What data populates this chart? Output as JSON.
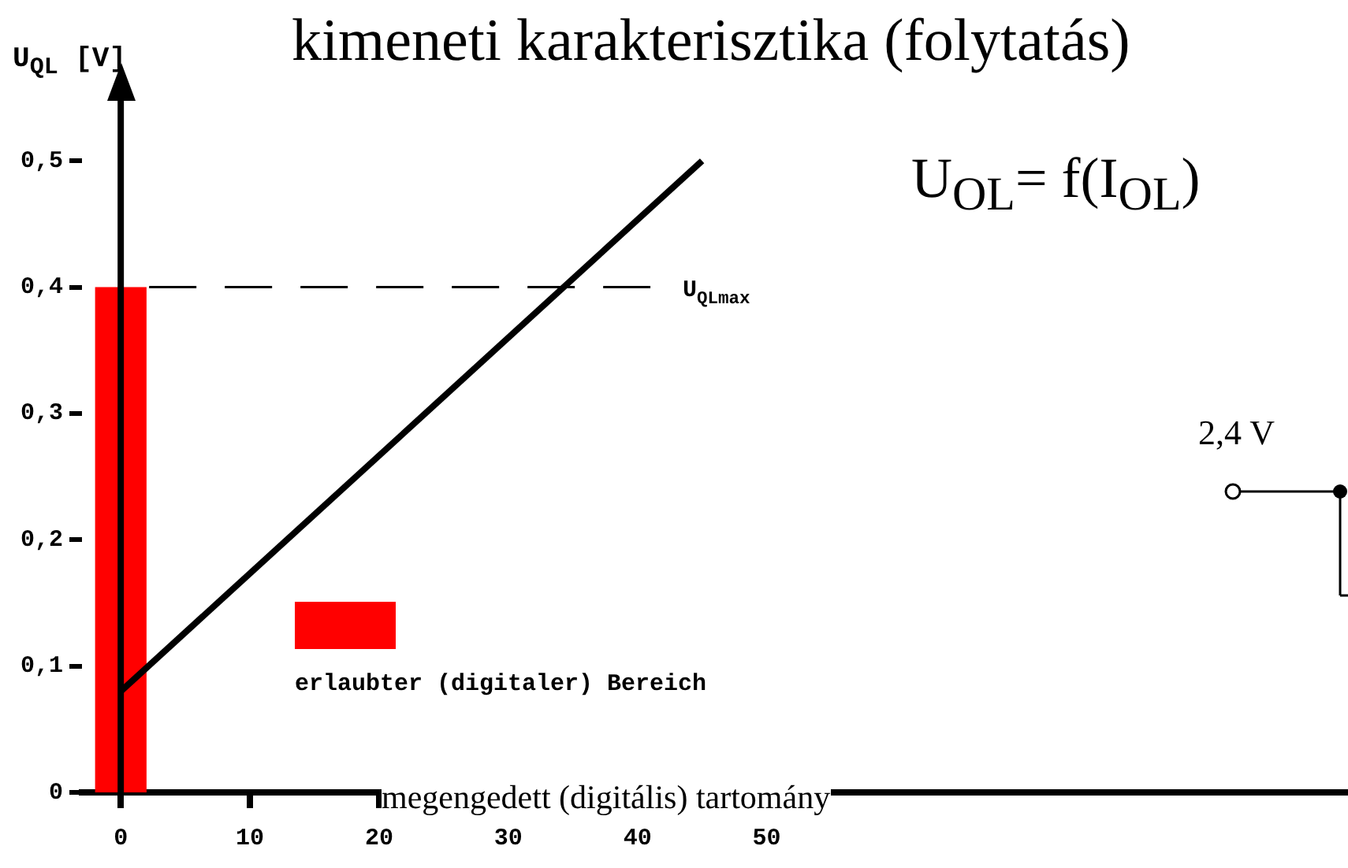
{
  "chart_data": {
    "type": "line",
    "title": "kimeneti karakterisztika (folytatás)",
    "ylabel": "U$_{QL}$ [V]",
    "annotations": [
      "U$_{OL}$= f(I$_{OL}$)",
      "megengedett (digitális) tartomány",
      "2,4 V"
    ],
    "series": [
      {
        "type": "area",
        "name": "erlaubter (digitaler) Bereich",
        "color": "#ff0000",
        "x": [
          -2,
          2
        ],
        "values": [
          0.4,
          0.4
        ]
      },
      {
        "type": "line",
        "color": "#000000",
        "x": [
          0,
          45
        ],
        "values": [
          0.08,
          0.5
        ]
      }
    ],
    "xlim": [
      -3,
      95
    ],
    "xticks": [
      0,
      10,
      20,
      30,
      40,
      50
    ],
    "ylim": [
      0,
      0.55
    ],
    "yticks": [
      {
        "value": 0,
        "label": "0"
      },
      {
        "value": 0.1,
        "label": "0,1"
      },
      {
        "value": 0.2,
        "label": "0,2"
      },
      {
        "value": 0.3,
        "label": "0,3"
      },
      {
        "value": 0.4,
        "label": "0,4"
      },
      {
        "value": 0.5,
        "label": "0,5"
      }
    ],
    "ref_lines": [
      {
        "axis": "y",
        "value": 0.4,
        "label": "U$_{QLmax}$",
        "line_style": "dashed"
      }
    ],
    "legend": "bottom",
    "grid": false,
    "marker": "none"
  }
}
